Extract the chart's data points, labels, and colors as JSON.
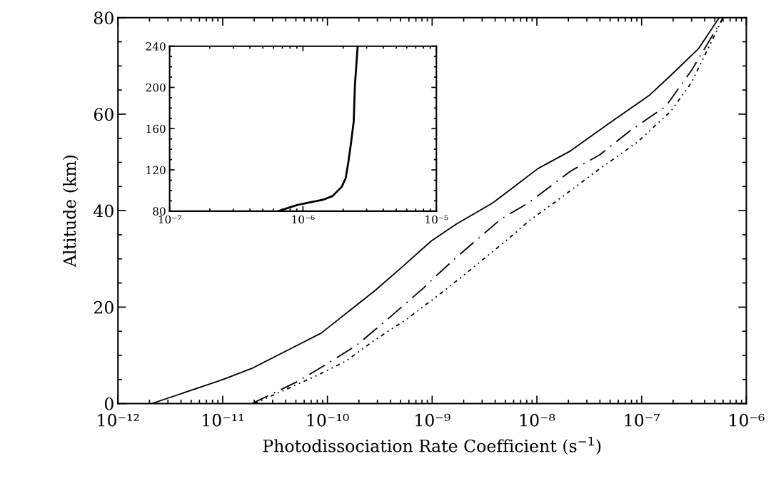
{
  "chart_data": [
    {
      "type": "line",
      "xlabel": "Photodissociation Rate Coefficient (s$^{−1}$)",
      "ylabel": "Altitude (km)",
      "log": "x",
      "xlim": [
        1e-12,
        1e-06
      ],
      "ylim": [
        0,
        80
      ],
      "xticks": [
        {
          "value": 1e-12,
          "label": "10⁻¹²"
        },
        {
          "value": 1e-11,
          "label": "10⁻¹¹"
        },
        {
          "value": 1e-10,
          "label": "10⁻¹⁰"
        },
        {
          "value": 1e-09,
          "label": "10⁻⁹"
        },
        {
          "value": 1e-08,
          "label": "10⁻⁸"
        },
        {
          "value": 1e-07,
          "label": "10⁻⁷"
        },
        {
          "value": 1e-06,
          "label": "10⁻⁶"
        }
      ],
      "yticks": [
        0,
        20,
        40,
        60,
        80
      ],
      "grid": false,
      "legend": false,
      "series": [
        {
          "color": "#000000",
          "line_style": "solid",
          "x": [
            2.1e-12,
            9.8e-12,
            1.9e-11,
            5.5e-11,
            8.7e-11,
            1.2e-10,
            2.8e-10,
            5.1e-10,
            9.8e-10,
            1.7e-09,
            3.8e-09,
            1.02e-08,
            2.1e-08,
            4.9e-08,
            1.2e-07,
            2e-07,
            3.5e-07,
            5.5e-07
          ],
          "values": [
            0,
            4.9,
            7.3,
            12.4,
            14.6,
            17,
            23.3,
            28.2,
            33.7,
            37.2,
            41.6,
            48.7,
            52.4,
            58.1,
            64,
            68.5,
            73.6,
            80
          ]
        },
        {
          "color": "#000000",
          "line_style": "dashed",
          "x": [
            1.9e-11,
            5.2e-11,
            1.02e-10,
            1.9e-10,
            4e-10,
            8.3e-10,
            1.07e-09,
            1.7e-09,
            4.5e-09,
            8.3e-09,
            2.1e-08,
            4e-08,
            7.8e-08,
            1.7e-07,
            3e-07,
            4.4e-07,
            6e-07
          ],
          "values": [
            0,
            4.6,
            8.4,
            12.1,
            18,
            24,
            26.3,
            30.3,
            38.2,
            41.6,
            48.2,
            51.6,
            56.6,
            61.6,
            69.1,
            75.1,
            80
          ]
        },
        {
          "color": "#000000",
          "line_style": "dotted",
          "x": [
            2e-11,
            7.9e-11,
            1.5e-10,
            2.8e-10,
            5.8e-10,
            1.2e-09,
            2e-09,
            5.8e-09,
            8.3e-09,
            1.1e-08,
            1.7e-08,
            4e-08,
            9.1e-08,
            1.9e-07,
            3e-07,
            4.4e-07,
            6e-07
          ],
          "values": [
            0,
            5.8,
            8.8,
            13.1,
            17.6,
            22.8,
            26.6,
            34.8,
            37.8,
            39.7,
            42.7,
            48.7,
            54.2,
            60.6,
            66.6,
            74,
            80
          ]
        }
      ]
    },
    {
      "type": "line",
      "log": "x",
      "xlim": [
        1e-07,
        1e-05
      ],
      "ylim": [
        80,
        240
      ],
      "xticks": [
        {
          "value": 1e-07,
          "label": "10⁻⁷"
        },
        {
          "value": 1e-06,
          "label": "10⁻⁶"
        },
        {
          "value": 1e-05,
          "label": "10⁻⁵"
        }
      ],
      "yticks": [
        80,
        120,
        160,
        200,
        240
      ],
      "grid": false,
      "legend": false,
      "series": [
        {
          "color": "#000000",
          "line_style": "solid",
          "x": [
            6.5e-07,
            9.1e-07,
            1.41e-06,
            1.66e-06,
            1.95e-06,
            2.09e-06,
            2.19e-06,
            2.29e-06,
            2.4e-06,
            2.45e-06,
            2.57e-06
          ],
          "values": [
            80,
            86,
            91,
            94.5,
            103.5,
            112,
            128,
            146,
            167,
            202,
            240
          ]
        }
      ]
    }
  ]
}
